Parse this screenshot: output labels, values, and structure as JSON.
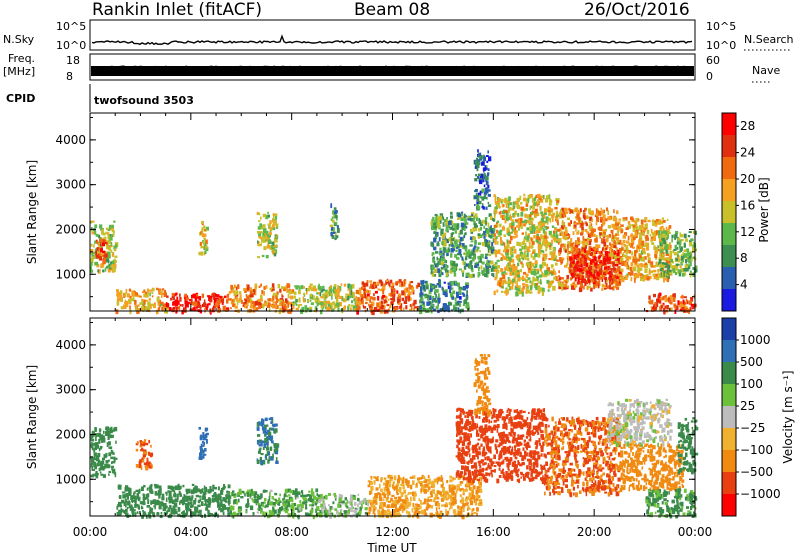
{
  "header": {
    "station": "Rankin Inlet (fitACF)",
    "beam": "Beam 08",
    "date": "26/Oct/2016"
  },
  "strip": {
    "nsky_label": "N.Sky",
    "nsky_ticks": [
      "10^5",
      "10^0"
    ],
    "nsearch_label": "N.Search",
    "nsearch_ticks": [
      "10^5",
      "10^0"
    ],
    "freq_label_line1": "Freq.",
    "freq_label_line2": "[MHz]",
    "freq_ticks": [
      "18",
      "8"
    ],
    "nave_label": "Nave",
    "nave_ticks": [
      "60",
      "0"
    ],
    "cpid_label": "CPID",
    "cpid_value": "twofsound 3503"
  },
  "colors": {
    "power_scale": [
      "#1a1ae0",
      "#2a5fb0",
      "#3c8f50",
      "#5cb84a",
      "#c8c02a",
      "#f5a020",
      "#f06a10",
      "#e03010",
      "#ff0000"
    ],
    "velocity_scale": [
      "#1a3fa8",
      "#2e6fb5",
      "#3a8a4a",
      "#6cc03a",
      "#bcbcbc",
      "#f0b030",
      "#f08a10",
      "#e84010",
      "#ff0000"
    ]
  },
  "chart_data": [
    {
      "type": "heatmap",
      "name": "power",
      "title": "",
      "xlabel": "Time UT",
      "ylabel": "Slant Range [km]",
      "x_ticks": [
        "00:00",
        "04:00",
        "08:00",
        "12:00",
        "16:00",
        "20:00",
        "00:00"
      ],
      "xlim": [
        0,
        24
      ],
      "y_ticks": [
        "1000",
        "2000",
        "3000",
        "4000"
      ],
      "ylim": [
        180,
        4600
      ],
      "colorbar": {
        "label": "Power [dB]",
        "ticks": [
          "4",
          "8",
          "12",
          "16",
          "20",
          "24",
          "28"
        ],
        "range": [
          0,
          30
        ]
      },
      "regions": [
        {
          "t0": 0.0,
          "t1": 1.0,
          "r0": 1100,
          "r1": 2200,
          "value": 14
        },
        {
          "t0": 0.2,
          "t1": 0.6,
          "r0": 1300,
          "r1": 1800,
          "value": 24
        },
        {
          "t0": 1.0,
          "t1": 3.0,
          "r0": 200,
          "r1": 700,
          "value": 18
        },
        {
          "t0": 3.0,
          "t1": 5.5,
          "r0": 200,
          "r1": 600,
          "value": 26
        },
        {
          "t0": 5.5,
          "t1": 8.0,
          "r0": 200,
          "r1": 800,
          "value": 20
        },
        {
          "t0": 8.0,
          "t1": 10.5,
          "r0": 200,
          "r1": 800,
          "value": 14
        },
        {
          "t0": 10.5,
          "t1": 13.0,
          "r0": 200,
          "r1": 900,
          "value": 22
        },
        {
          "t0": 13.0,
          "t1": 15.0,
          "r0": 200,
          "r1": 900,
          "value": 8
        },
        {
          "t0": 4.3,
          "t1": 4.6,
          "r0": 1500,
          "r1": 2200,
          "value": 16
        },
        {
          "t0": 6.6,
          "t1": 7.4,
          "r0": 1400,
          "r1": 2400,
          "value": 14
        },
        {
          "t0": 9.5,
          "t1": 9.8,
          "r0": 1800,
          "r1": 2600,
          "value": 10
        },
        {
          "t0": 13.5,
          "t1": 16.0,
          "r0": 1000,
          "r1": 2400,
          "value": 10
        },
        {
          "t0": 15.2,
          "t1": 15.8,
          "r0": 2500,
          "r1": 3800,
          "value": 6
        },
        {
          "t0": 16.0,
          "t1": 18.5,
          "r0": 600,
          "r1": 2800,
          "value": 16
        },
        {
          "t0": 18.5,
          "t1": 21.0,
          "r0": 700,
          "r1": 2500,
          "value": 20
        },
        {
          "t0": 19.0,
          "t1": 21.0,
          "r0": 800,
          "r1": 1600,
          "value": 26
        },
        {
          "t0": 21.0,
          "t1": 23.0,
          "r0": 900,
          "r1": 2300,
          "value": 18
        },
        {
          "t0": 22.0,
          "t1": 24.0,
          "r0": 200,
          "r1": 600,
          "value": 24
        },
        {
          "t0": 22.5,
          "t1": 24.0,
          "r0": 1000,
          "r1": 2000,
          "value": 12
        }
      ]
    },
    {
      "type": "heatmap",
      "name": "velocity",
      "title": "",
      "xlabel": "Time UT",
      "ylabel": "Slant Range [km]",
      "x_ticks": [
        "00:00",
        "04:00",
        "08:00",
        "12:00",
        "16:00",
        "20:00",
        "00:00"
      ],
      "xlim": [
        0,
        24
      ],
      "y_ticks": [
        "1000",
        "2000",
        "3000",
        "4000"
      ],
      "ylim": [
        180,
        4600
      ],
      "colorbar": {
        "label": "Velocity [m s⁻¹]",
        "ticks": [
          "1000",
          "500",
          "100",
          "25",
          "−25",
          "−100",
          "−500",
          "−1000"
        ]
      },
      "regions": [
        {
          "t0": 0.0,
          "t1": 1.0,
          "r0": 1100,
          "r1": 2200,
          "value": 100
        },
        {
          "t0": 1.8,
          "t1": 2.4,
          "r0": 1300,
          "r1": 1900,
          "value": -300
        },
        {
          "t0": 1.0,
          "t1": 5.5,
          "r0": 200,
          "r1": 900,
          "value": 100
        },
        {
          "t0": 5.5,
          "t1": 9.0,
          "r0": 200,
          "r1": 800,
          "value": 60
        },
        {
          "t0": 9.0,
          "t1": 11.0,
          "r0": 200,
          "r1": 700,
          "value": 40
        },
        {
          "t0": 11.0,
          "t1": 15.5,
          "r0": 200,
          "r1": 1100,
          "value": -100
        },
        {
          "t0": 4.3,
          "t1": 4.6,
          "r0": 1500,
          "r1": 2200,
          "value": 500
        },
        {
          "t0": 6.6,
          "t1": 7.4,
          "r0": 1400,
          "r1": 2400,
          "value": 300
        },
        {
          "t0": 14.5,
          "t1": 18.0,
          "r0": 1000,
          "r1": 2600,
          "value": -500
        },
        {
          "t0": 15.2,
          "t1": 15.8,
          "r0": 2500,
          "r1": 3800,
          "value": -200
        },
        {
          "t0": 18.0,
          "t1": 21.0,
          "r0": 700,
          "r1": 2400,
          "value": -300
        },
        {
          "t0": 20.5,
          "t1": 23.0,
          "r0": 1800,
          "r1": 2800,
          "value": 0
        },
        {
          "t0": 21.0,
          "t1": 23.5,
          "r0": 800,
          "r1": 1800,
          "value": -200
        },
        {
          "t0": 22.0,
          "t1": 24.0,
          "r0": 200,
          "r1": 800,
          "value": 80
        },
        {
          "t0": 23.3,
          "t1": 24.0,
          "r0": 1200,
          "r1": 2400,
          "value": 150
        }
      ]
    }
  ]
}
